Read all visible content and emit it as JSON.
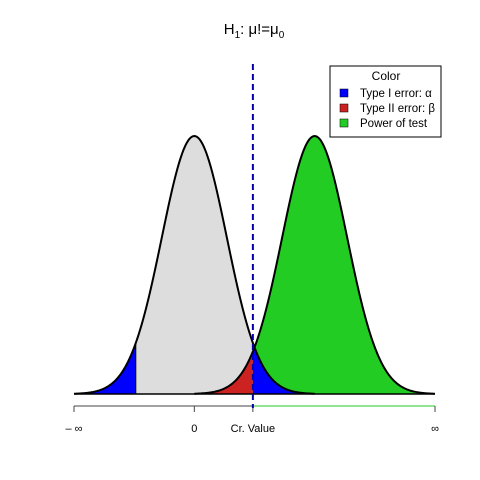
{
  "chart_data": {
    "type": "area",
    "title": {
      "h": "H",
      "h_sub": "1",
      "mid": ": μ!=μ",
      "mu_sub": "0"
    },
    "x_range": [
      -3.7,
      7.4
    ],
    "null_distribution": {
      "mean": 0,
      "sd": 1
    },
    "alternative_distribution": {
      "mean": 3.7,
      "sd": 1
    },
    "critical_value_upper": 1.8,
    "critical_value_lower": -1.8,
    "legend": {
      "title": "Color",
      "placement": "top-right",
      "entries": [
        {
          "label": "Type I error: α",
          "color": "#0000ff"
        },
        {
          "label": "Type II error: β",
          "color": "#cc2222"
        },
        {
          "label": "Power of test",
          "color": "#22cc22"
        }
      ]
    },
    "x_ticks": [
      {
        "value": -3.7,
        "label": "– ∞"
      },
      {
        "value": 0,
        "label": "0"
      },
      {
        "value": 1.8,
        "label": "Cr. Value"
      },
      {
        "value": 7.4,
        "label": "∞"
      }
    ],
    "colors": {
      "null_fill": "#dddddd",
      "type1": "#0000ff",
      "type2": "#cc2222",
      "power": "#22cc22",
      "critical_line": "#0000aa"
    }
  }
}
